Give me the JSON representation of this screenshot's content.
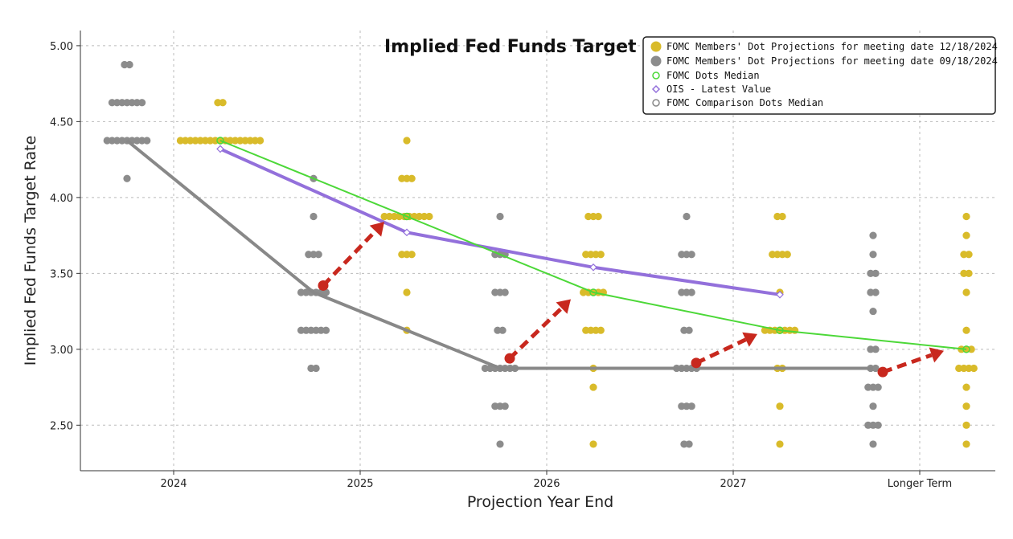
{
  "chart_data": {
    "type": "scatter",
    "title": "Implied Fed Funds Target",
    "xlabel": "Projection Year End",
    "ylabel": "Implied Fed Funds Target Rate",
    "categories": [
      "2024",
      "2025",
      "2026",
      "2027",
      "Longer Term"
    ],
    "ylim": [
      2.2,
      5.1
    ],
    "yticks": [
      "5.00",
      "4.50",
      "4.00",
      "3.50",
      "3.00",
      "2.50"
    ],
    "grid": true,
    "legend_position": "top-right",
    "colors": {
      "dec_dots": "#d9bb2a",
      "sep_dots": "#8c8c8c",
      "median_line": "#4cd838",
      "ois_line": "#9370db",
      "comparison_line": "#888888",
      "arrows": "#c8281e"
    },
    "legend": [
      "FOMC Members' Dot Projections for meeting date 12/18/2024",
      "FOMC Members' Dot Projections for meeting date 09/18/2024",
      "FOMC Dots Median",
      "OIS - Latest Value",
      "FOMC Comparison Dots Median"
    ],
    "dots_dec_2024": [
      {
        "category": "2024",
        "rate": 4.625,
        "count": 2
      },
      {
        "category": "2024",
        "rate": 4.375,
        "count": 17
      },
      {
        "category": "2025",
        "rate": 4.375,
        "count": 1
      },
      {
        "category": "2025",
        "rate": 4.125,
        "count": 3
      },
      {
        "category": "2025",
        "rate": 3.875,
        "count": 10
      },
      {
        "category": "2025",
        "rate": 3.625,
        "count": 3
      },
      {
        "category": "2025",
        "rate": 3.375,
        "count": 1
      },
      {
        "category": "2025",
        "rate": 3.125,
        "count": 1
      },
      {
        "category": "2026",
        "rate": 3.875,
        "count": 3
      },
      {
        "category": "2026",
        "rate": 3.625,
        "count": 4
      },
      {
        "category": "2026",
        "rate": 3.375,
        "count": 5
      },
      {
        "category": "2026",
        "rate": 3.125,
        "count": 4
      },
      {
        "category": "2026",
        "rate": 2.875,
        "count": 1
      },
      {
        "category": "2026",
        "rate": 2.75,
        "count": 1
      },
      {
        "category": "2026",
        "rate": 2.375,
        "count": 1
      },
      {
        "category": "2027",
        "rate": 3.875,
        "count": 2
      },
      {
        "category": "2027",
        "rate": 3.625,
        "count": 4
      },
      {
        "category": "2027",
        "rate": 3.375,
        "count": 1
      },
      {
        "category": "2027",
        "rate": 3.125,
        "count": 7
      },
      {
        "category": "2027",
        "rate": 2.875,
        "count": 2
      },
      {
        "category": "2027",
        "rate": 2.625,
        "count": 1
      },
      {
        "category": "2027",
        "rate": 2.375,
        "count": 1
      },
      {
        "category": "Longer Term",
        "rate": 3.875,
        "count": 1
      },
      {
        "category": "Longer Term",
        "rate": 3.75,
        "count": 1
      },
      {
        "category": "Longer Term",
        "rate": 3.625,
        "count": 2
      },
      {
        "category": "Longer Term",
        "rate": 3.5,
        "count": 2
      },
      {
        "category": "Longer Term",
        "rate": 3.375,
        "count": 1
      },
      {
        "category": "Longer Term",
        "rate": 3.125,
        "count": 1
      },
      {
        "category": "Longer Term",
        "rate": 3.0,
        "count": 3
      },
      {
        "category": "Longer Term",
        "rate": 2.875,
        "count": 4
      },
      {
        "category": "Longer Term",
        "rate": 2.75,
        "count": 1
      },
      {
        "category": "Longer Term",
        "rate": 2.625,
        "count": 1
      },
      {
        "category": "Longer Term",
        "rate": 2.5,
        "count": 1
      },
      {
        "category": "Longer Term",
        "rate": 2.375,
        "count": 1
      }
    ],
    "dots_sep_2024": [
      {
        "category": "2024",
        "rate": 4.875,
        "count": 2
      },
      {
        "category": "2024",
        "rate": 4.625,
        "count": 7
      },
      {
        "category": "2024",
        "rate": 4.375,
        "count": 9
      },
      {
        "category": "2024",
        "rate": 4.125,
        "count": 1
      },
      {
        "category": "2025",
        "rate": 4.125,
        "count": 1
      },
      {
        "category": "2025",
        "rate": 3.875,
        "count": 1
      },
      {
        "category": "2025",
        "rate": 3.625,
        "count": 3
      },
      {
        "category": "2025",
        "rate": 3.375,
        "count": 6
      },
      {
        "category": "2025",
        "rate": 3.125,
        "count": 6
      },
      {
        "category": "2025",
        "rate": 2.875,
        "count": 2
      },
      {
        "category": "2026",
        "rate": 3.875,
        "count": 1
      },
      {
        "category": "2026",
        "rate": 3.625,
        "count": 3
      },
      {
        "category": "2026",
        "rate": 3.375,
        "count": 3
      },
      {
        "category": "2026",
        "rate": 3.125,
        "count": 2
      },
      {
        "category": "2026",
        "rate": 2.875,
        "count": 7
      },
      {
        "category": "2026",
        "rate": 2.625,
        "count": 3
      },
      {
        "category": "2026",
        "rate": 2.375,
        "count": 1
      },
      {
        "category": "2027",
        "rate": 3.875,
        "count": 1
      },
      {
        "category": "2027",
        "rate": 3.625,
        "count": 3
      },
      {
        "category": "2027",
        "rate": 3.375,
        "count": 3
      },
      {
        "category": "2027",
        "rate": 3.125,
        "count": 2
      },
      {
        "category": "2027",
        "rate": 2.875,
        "count": 5
      },
      {
        "category": "2027",
        "rate": 2.625,
        "count": 3
      },
      {
        "category": "2027",
        "rate": 2.375,
        "count": 2
      },
      {
        "category": "Longer Term",
        "rate": 3.75,
        "count": 1
      },
      {
        "category": "Longer Term",
        "rate": 3.625,
        "count": 1
      },
      {
        "category": "Longer Term",
        "rate": 3.5,
        "count": 2
      },
      {
        "category": "Longer Term",
        "rate": 3.375,
        "count": 2
      },
      {
        "category": "Longer Term",
        "rate": 3.25,
        "count": 1
      },
      {
        "category": "Longer Term",
        "rate": 3.0,
        "count": 2
      },
      {
        "category": "Longer Term",
        "rate": 2.875,
        "count": 2
      },
      {
        "category": "Longer Term",
        "rate": 2.75,
        "count": 3
      },
      {
        "category": "Longer Term",
        "rate": 2.625,
        "count": 1
      },
      {
        "category": "Longer Term",
        "rate": 2.5,
        "count": 3
      },
      {
        "category": "Longer Term",
        "rate": 2.375,
        "count": 1
      }
    ],
    "series": [
      {
        "name": "FOMC Dots Median",
        "x": [
          "2024",
          "2025",
          "2026",
          "2027",
          "Longer Term"
        ],
        "values": [
          4.375,
          3.875,
          3.375,
          3.125,
          3.0
        ]
      },
      {
        "name": "OIS - Latest Value",
        "x": [
          "2024",
          "2025",
          "2026",
          "2027"
        ],
        "values": [
          4.32,
          3.77,
          3.54,
          3.36
        ]
      },
      {
        "name": "FOMC Comparison Dots Median",
        "x": [
          "2024",
          "2025",
          "2026",
          "2027",
          "Longer Term"
        ],
        "values": [
          4.375,
          3.375,
          2.875,
          2.875,
          2.875
        ]
      }
    ],
    "arrows": [
      {
        "from_category": "2025",
        "from": 3.42,
        "to_category": "2025",
        "to": 3.84
      },
      {
        "from_category": "2026",
        "from": 2.94,
        "to_category": "2026",
        "to": 3.33
      },
      {
        "from_category": "2027",
        "from": 2.91,
        "to_category": "2027",
        "to": 3.1
      },
      {
        "from_category": "Longer Term",
        "from": 2.85,
        "to_category": "Longer Term",
        "to": 2.99
      }
    ]
  }
}
